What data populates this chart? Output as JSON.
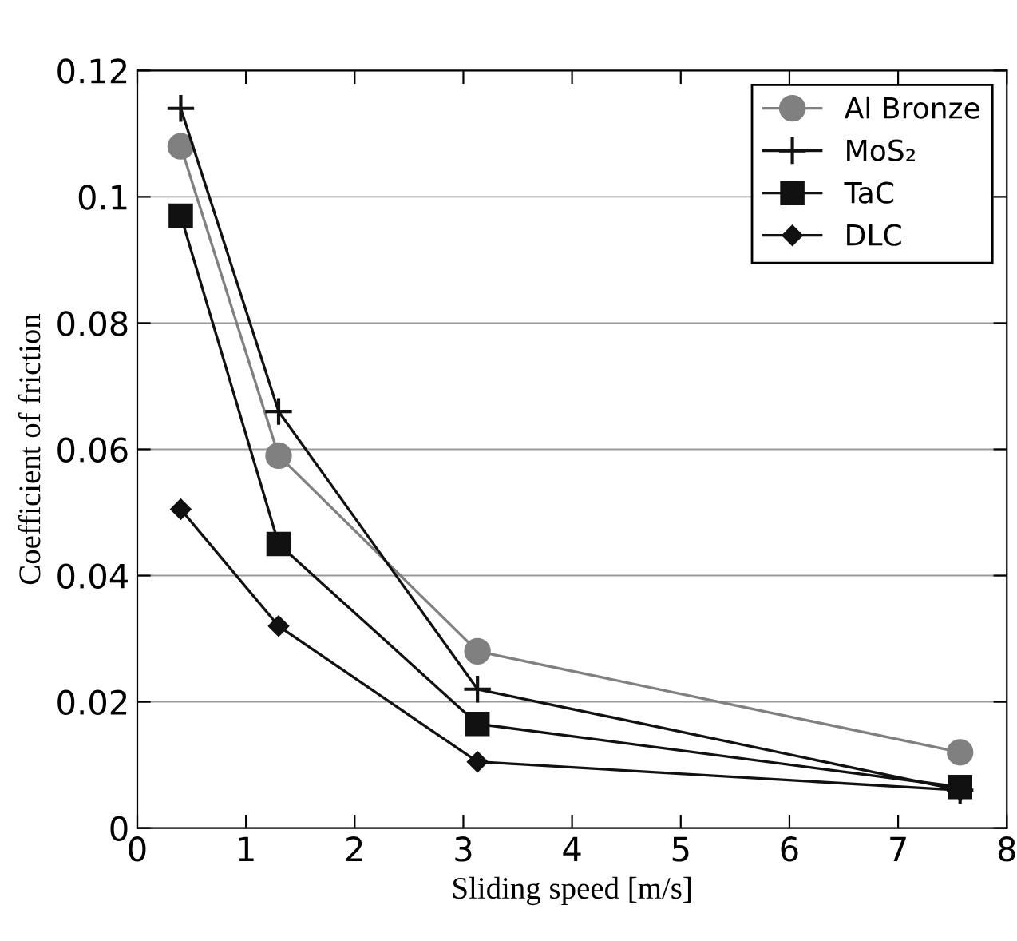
{
  "chart_data": {
    "type": "line",
    "xlabel": "Sliding speed [m/s]",
    "ylabel": "Coefficient of friction",
    "x": [
      0.4,
      1.3,
      3.13,
      7.57
    ],
    "series": [
      {
        "name": "Al Bronze",
        "color": "#808080",
        "marker": "circle",
        "values": [
          0.108,
          0.059,
          0.028,
          0.012
        ]
      },
      {
        "name": "MoS₂",
        "color": "#111111",
        "marker": "cross",
        "values": [
          0.114,
          0.066,
          0.022,
          0.006
        ]
      },
      {
        "name": "TaC",
        "color": "#111111",
        "marker": "square",
        "values": [
          0.097,
          0.045,
          0.0165,
          0.0065
        ]
      },
      {
        "name": "DLC",
        "color": "#111111",
        "marker": "diamond",
        "values": [
          0.0505,
          0.032,
          0.0105,
          0.006
        ]
      }
    ],
    "xlim": [
      0,
      8
    ],
    "xticks": [
      0,
      1,
      2,
      3,
      4,
      5,
      6,
      7,
      8
    ],
    "ylim": [
      0,
      0.12
    ],
    "yticks": [
      0,
      0.02,
      0.04,
      0.06,
      0.08,
      0.1,
      0.12
    ],
    "grid": "y",
    "legend": "top right",
    "line_style": "solid"
  }
}
